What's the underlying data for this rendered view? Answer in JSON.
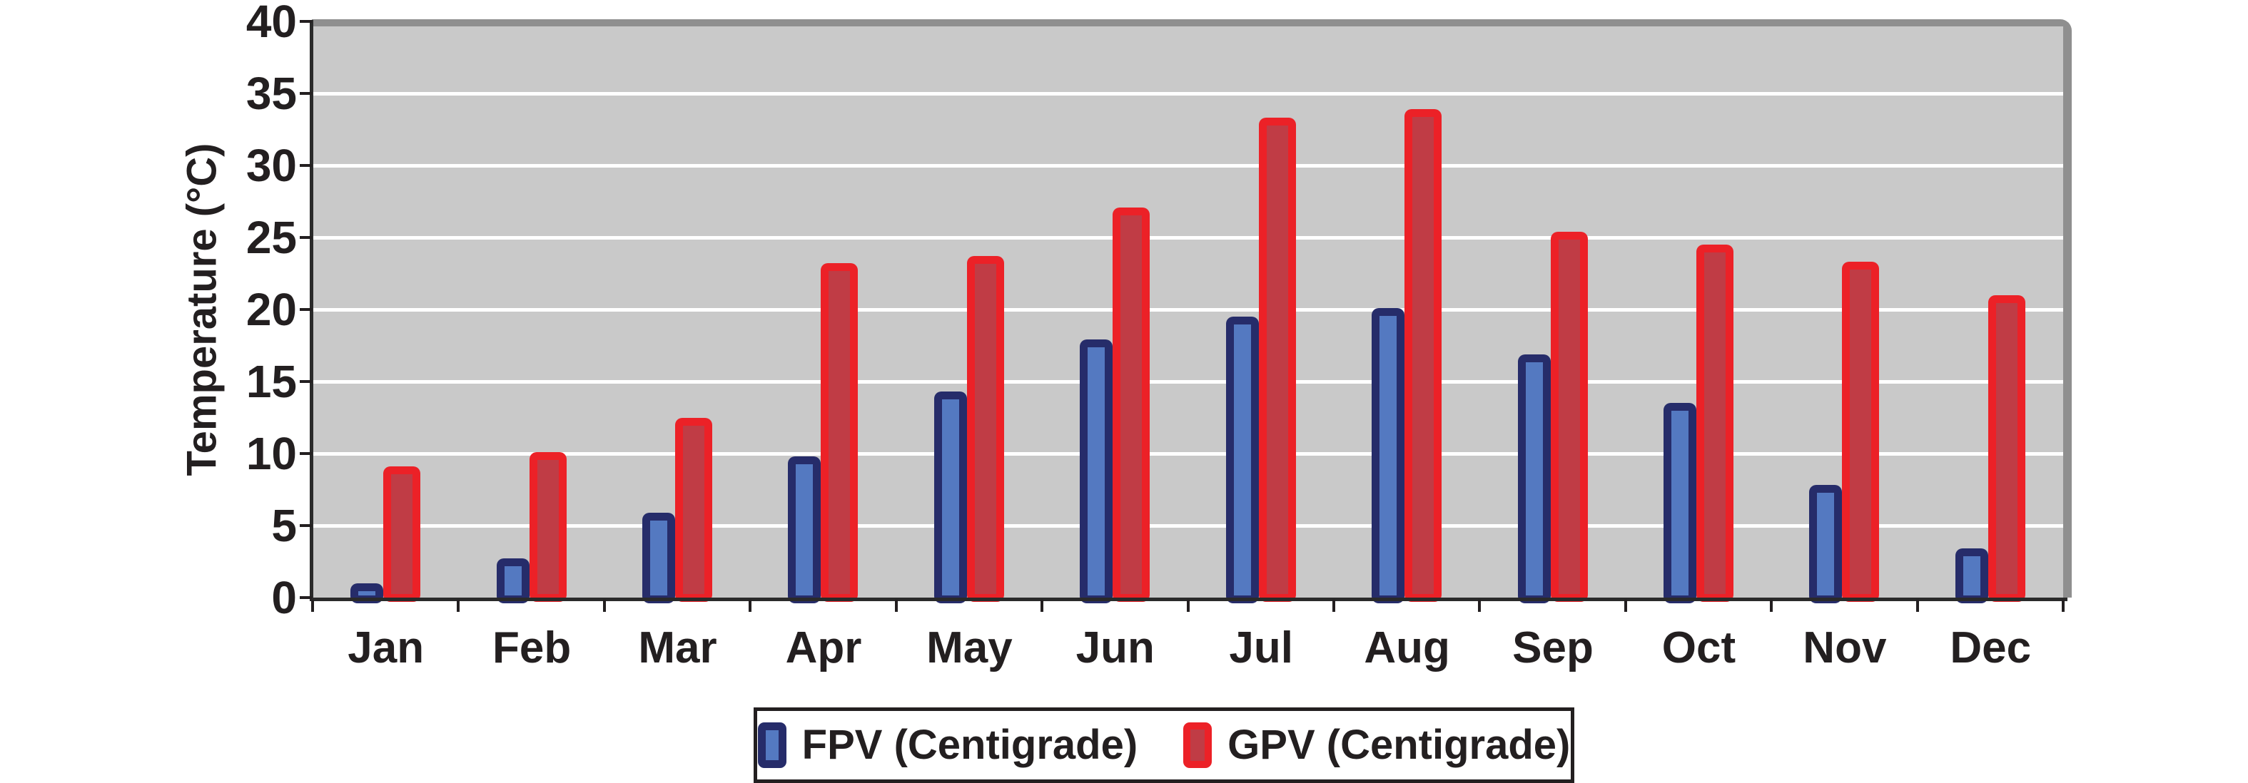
{
  "chart_data": {
    "type": "bar",
    "title": "",
    "xlabel": "",
    "ylabel": "Temperature (°C)",
    "categories": [
      "Jan",
      "Feb",
      "Mar",
      "Apr",
      "May",
      "Jun",
      "Jul",
      "Aug",
      "Sep",
      "Oct",
      "Nov",
      "Dec"
    ],
    "series": [
      {
        "name": "FPV (Centigrade)",
        "values": [
          1.0,
          2.7,
          5.9,
          9.8,
          14.3,
          17.9,
          19.5,
          20.1,
          16.9,
          13.5,
          7.8,
          3.4
        ],
        "fill": "#5479c1",
        "border": "#262c6a"
      },
      {
        "name": "GPV (Centigrade)",
        "values": [
          9.1,
          10.1,
          12.5,
          23.2,
          23.7,
          27.1,
          33.3,
          33.9,
          25.4,
          24.5,
          23.3,
          21.0
        ],
        "fill": "#c03c45",
        "border": "#ec2127"
      }
    ],
    "ylim": [
      0,
      40
    ],
    "y_ticks": [
      0,
      5,
      10,
      15,
      20,
      25,
      30,
      35,
      40
    ],
    "grid": true,
    "gridline_color": "#ffffff",
    "plot_background": "#c9c9c9",
    "frame_color": "#8f8f8f",
    "axis_color": "#2a2a2a",
    "text_color": "#231f20",
    "legend_position": "bottom-center"
  }
}
